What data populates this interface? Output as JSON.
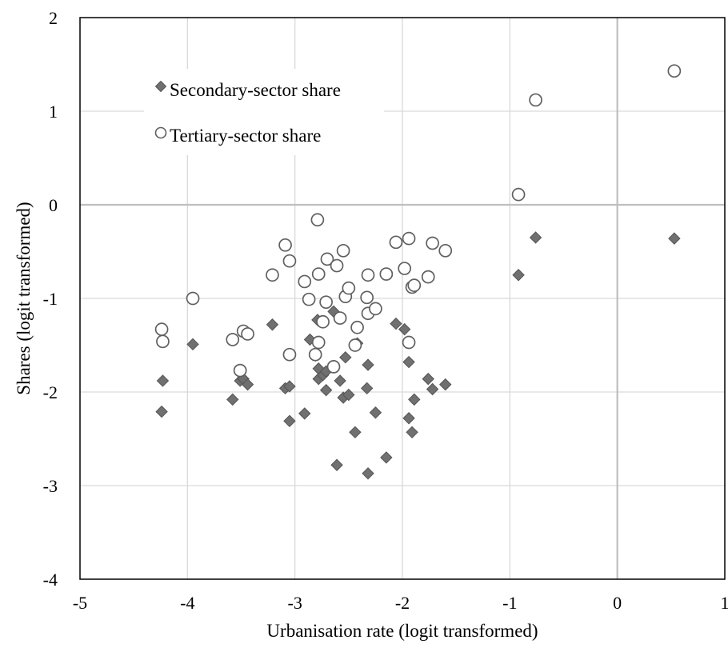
{
  "chart_data": {
    "type": "scatter",
    "xlabel": "Urbanisation rate (logit transformed)",
    "ylabel": "Shares (logit transformed)",
    "xlim": [
      -5,
      1
    ],
    "ylim": [
      -4,
      2
    ],
    "xticks": [
      "-5",
      "-4",
      "-3",
      "-2",
      "-1",
      "0",
      "1"
    ],
    "yticks": [
      "2",
      "1",
      "0",
      "-1",
      "-2",
      "-3",
      "-4"
    ],
    "grid": true,
    "legend_position": "top-left",
    "series": [
      {
        "name": "Secondary-sector share",
        "marker": "diamond-filled",
        "color": "#707070",
        "points": [
          [
            -4.23,
            -1.88
          ],
          [
            -4.24,
            -2.21
          ],
          [
            -3.95,
            -1.49
          ],
          [
            -3.58,
            -2.08
          ],
          [
            -3.51,
            -1.88
          ],
          [
            -3.48,
            -1.86
          ],
          [
            -3.44,
            -1.92
          ],
          [
            -3.21,
            -1.28
          ],
          [
            -3.09,
            -1.96
          ],
          [
            -3.05,
            -1.94
          ],
          [
            -3.05,
            -2.31
          ],
          [
            -2.91,
            -2.23
          ],
          [
            -2.86,
            -1.44
          ],
          [
            -2.81,
            -1.61
          ],
          [
            -2.79,
            -1.23
          ],
          [
            -2.78,
            -1.75
          ],
          [
            -2.78,
            -1.86
          ],
          [
            -2.74,
            -1.82
          ],
          [
            -2.71,
            -1.78
          ],
          [
            -2.71,
            -1.98
          ],
          [
            -2.64,
            -1.14
          ],
          [
            -2.61,
            -2.78
          ],
          [
            -2.58,
            -1.88
          ],
          [
            -2.55,
            -2.06
          ],
          [
            -2.53,
            -1.63
          ],
          [
            -2.5,
            -2.03
          ],
          [
            -2.44,
            -2.43
          ],
          [
            -2.42,
            -1.48
          ],
          [
            -2.33,
            -1.96
          ],
          [
            -2.32,
            -1.71
          ],
          [
            -2.32,
            -2.87
          ],
          [
            -2.25,
            -2.22
          ],
          [
            -2.15,
            -2.7
          ],
          [
            -2.06,
            -1.27
          ],
          [
            -1.98,
            -1.33
          ],
          [
            -1.94,
            -1.68
          ],
          [
            -1.94,
            -2.28
          ],
          [
            -1.91,
            -2.43
          ],
          [
            -1.89,
            -2.08
          ],
          [
            -1.76,
            -1.86
          ],
          [
            -1.72,
            -1.97
          ],
          [
            -1.6,
            -1.92
          ],
          [
            -0.92,
            -0.75
          ],
          [
            -0.76,
            -0.35
          ],
          [
            0.53,
            -0.36
          ]
        ]
      },
      {
        "name": "Tertiary-sector share",
        "marker": "circle-open",
        "color": "#606060",
        "points": [
          [
            -4.24,
            -1.33
          ],
          [
            -4.23,
            -1.46
          ],
          [
            -3.95,
            -1.0
          ],
          [
            -3.58,
            -1.44
          ],
          [
            -3.51,
            -1.77
          ],
          [
            -3.48,
            -1.35
          ],
          [
            -3.44,
            -1.38
          ],
          [
            -3.21,
            -0.75
          ],
          [
            -3.09,
            -0.43
          ],
          [
            -3.05,
            -0.6
          ],
          [
            -3.05,
            -1.6
          ],
          [
            -2.91,
            -0.82
          ],
          [
            -2.87,
            -1.01
          ],
          [
            -2.81,
            -1.6
          ],
          [
            -2.79,
            -0.16
          ],
          [
            -2.78,
            -0.74
          ],
          [
            -2.78,
            -1.47
          ],
          [
            -2.74,
            -1.25
          ],
          [
            -2.71,
            -1.04
          ],
          [
            -2.7,
            -0.58
          ],
          [
            -2.64,
            -1.73
          ],
          [
            -2.61,
            -0.65
          ],
          [
            -2.58,
            -1.21
          ],
          [
            -2.55,
            -0.49
          ],
          [
            -2.53,
            -0.98
          ],
          [
            -2.5,
            -0.89
          ],
          [
            -2.44,
            -1.5
          ],
          [
            -2.42,
            -1.31
          ],
          [
            -2.33,
            -0.99
          ],
          [
            -2.32,
            -1.16
          ],
          [
            -2.32,
            -0.75
          ],
          [
            -2.25,
            -1.11
          ],
          [
            -2.15,
            -0.74
          ],
          [
            -2.06,
            -0.4
          ],
          [
            -1.98,
            -0.68
          ],
          [
            -1.94,
            -0.36
          ],
          [
            -1.94,
            -1.47
          ],
          [
            -1.91,
            -0.88
          ],
          [
            -1.89,
            -0.86
          ],
          [
            -1.76,
            -0.77
          ],
          [
            -1.72,
            -0.41
          ],
          [
            -1.6,
            -0.49
          ],
          [
            -0.92,
            0.11
          ],
          [
            -0.76,
            1.12
          ],
          [
            0.53,
            1.43
          ]
        ]
      }
    ]
  }
}
